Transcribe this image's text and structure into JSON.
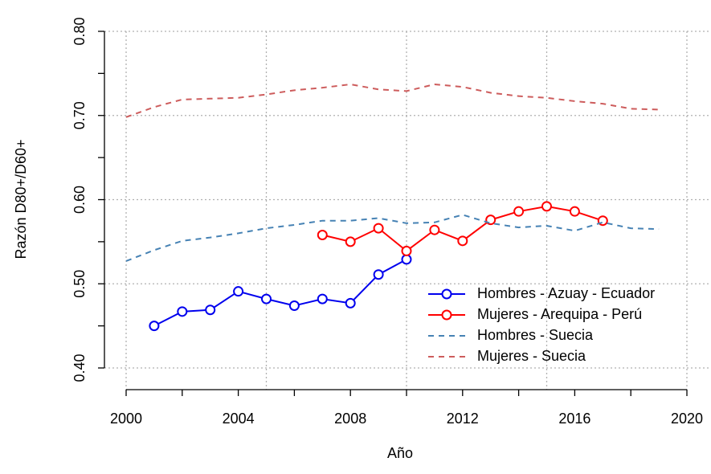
{
  "chart_data": {
    "type": "line",
    "x_label": "Año",
    "y_label": "Razón D80+/D60+",
    "xlim": [
      2000,
      2020
    ],
    "ylim": [
      0.4,
      0.8
    ],
    "xticks": [
      2000,
      2004,
      2008,
      2012,
      2016,
      2020
    ],
    "xminor_ticks": [
      2002,
      2006,
      2010,
      2014,
      2018
    ],
    "yticks": [
      {
        "value": 0.4,
        "label": "0.40"
      },
      {
        "value": 0.5,
        "label": "0.50"
      },
      {
        "value": 0.6,
        "label": "0.60"
      },
      {
        "value": 0.7,
        "label": "0.70"
      },
      {
        "value": 0.8,
        "label": "0.80"
      }
    ],
    "yminor_ticks": [
      0.45,
      0.55,
      0.65,
      0.75
    ],
    "xgrid": [
      2000,
      2005,
      2010,
      2015,
      2020
    ],
    "ygrid": [
      0.4,
      0.5,
      0.6,
      0.7,
      0.8
    ],
    "legend": "bottom-right",
    "series": [
      {
        "name": "Hombres - Azuay - Ecuador",
        "color": "#0000ee",
        "markers": true,
        "dashed": false,
        "x": [
          2001,
          2002,
          2003,
          2004,
          2005,
          2006,
          2007,
          2008,
          2009,
          2010
        ],
        "values": [
          0.45,
          0.467,
          0.469,
          0.491,
          0.482,
          0.474,
          0.482,
          0.477,
          0.511,
          0.529
        ]
      },
      {
        "name": "Mujeres - Arequipa - Perú",
        "color": "#ff0000",
        "markers": true,
        "dashed": false,
        "x": [
          2007,
          2008,
          2009,
          2010,
          2011,
          2012,
          2013,
          2014,
          2015,
          2016,
          2017
        ],
        "values": [
          0.558,
          0.55,
          0.566,
          0.539,
          0.564,
          0.551,
          0.576,
          0.586,
          0.592,
          0.586,
          0.575
        ]
      },
      {
        "name": "Hombres - Suecia",
        "color": "#4682b4",
        "markers": false,
        "dashed": true,
        "x": [
          2000,
          2001,
          2002,
          2003,
          2004,
          2005,
          2006,
          2007,
          2008,
          2009,
          2010,
          2011,
          2012,
          2013,
          2014,
          2015,
          2016,
          2017,
          2018,
          2019
        ],
        "values": [
          0.527,
          0.54,
          0.551,
          0.555,
          0.56,
          0.566,
          0.57,
          0.575,
          0.575,
          0.578,
          0.572,
          0.573,
          0.582,
          0.572,
          0.567,
          0.569,
          0.563,
          0.573,
          0.566,
          0.565
        ]
      },
      {
        "name": "Mujeres - Suecia",
        "color": "#cd5c5c",
        "markers": false,
        "dashed": true,
        "x": [
          2000,
          2001,
          2002,
          2003,
          2004,
          2005,
          2006,
          2007,
          2008,
          2009,
          2010,
          2011,
          2012,
          2013,
          2014,
          2015,
          2016,
          2017,
          2018,
          2019
        ],
        "values": [
          0.698,
          0.71,
          0.719,
          0.72,
          0.721,
          0.725,
          0.73,
          0.733,
          0.737,
          0.731,
          0.729,
          0.737,
          0.734,
          0.727,
          0.723,
          0.721,
          0.717,
          0.714,
          0.708,
          0.707
        ]
      }
    ]
  }
}
